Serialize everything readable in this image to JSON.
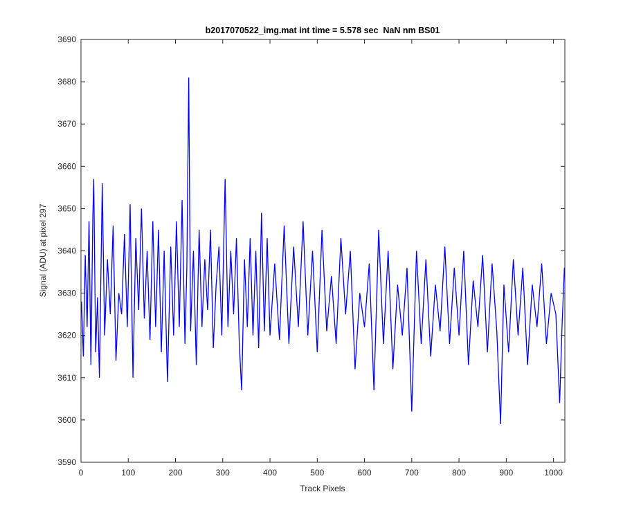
{
  "chart_data": {
    "type": "line",
    "title": "b2017070522_img.mat int time = 5.578 sec  NaN nm BS01",
    "x_label": "Track Pixels",
    "y_label": "Signal (ADU) at pixel 297",
    "xlim": [
      0,
      1024
    ],
    "xticks": [
      0,
      100,
      200,
      300,
      400,
      500,
      600,
      700,
      800,
      900,
      1000
    ],
    "ylim": [
      3590,
      3690
    ],
    "yticks": [
      3590,
      3600,
      3610,
      3620,
      3630,
      3640,
      3650,
      3660,
      3670,
      3680,
      3690
    ],
    "x": [
      1,
      5,
      9,
      13,
      17,
      21,
      25,
      27,
      31,
      35,
      39,
      45,
      50,
      56,
      62,
      68,
      74,
      80,
      86,
      92,
      98,
      104,
      110,
      116,
      122,
      128,
      134,
      140,
      146,
      152,
      158,
      164,
      170,
      176,
      183,
      190,
      196,
      202,
      208,
      214,
      220,
      224,
      228,
      232,
      238,
      244,
      250,
      256,
      262,
      268,
      274,
      280,
      286,
      292,
      298,
      305,
      311,
      317,
      323,
      329,
      335,
      340,
      346,
      352,
      358,
      364,
      370,
      376,
      382,
      388,
      394,
      400,
      410,
      420,
      430,
      440,
      450,
      460,
      470,
      480,
      490,
      500,
      510,
      520,
      530,
      540,
      550,
      560,
      570,
      580,
      590,
      600,
      610,
      620,
      630,
      640,
      650,
      660,
      670,
      680,
      690,
      700,
      710,
      720,
      730,
      740,
      750,
      760,
      770,
      780,
      790,
      800,
      810,
      820,
      830,
      840,
      850,
      860,
      870,
      880,
      888,
      895,
      905,
      915,
      925,
      935,
      945,
      955,
      965,
      975,
      985,
      995,
      1005,
      1013,
      1018,
      1023
    ],
    "series": [
      {
        "color": "#0000ff",
        "values": [
          3628,
          3615,
          3639,
          3622,
          3647,
          3613,
          3648,
          3657,
          3616,
          3629,
          3610,
          3656,
          3620,
          3638,
          3625,
          3646,
          3614,
          3630,
          3625,
          3644,
          3622,
          3651,
          3610,
          3643,
          3626,
          3650,
          3624,
          3640,
          3619,
          3647,
          3622,
          3645,
          3616,
          3640,
          3609,
          3641,
          3620,
          3647,
          3622,
          3652,
          3618,
          3636,
          3681,
          3621,
          3640,
          3613,
          3645,
          3622,
          3638,
          3626,
          3645,
          3617,
          3632,
          3641,
          3620,
          3657,
          3622,
          3640,
          3625,
          3643,
          3618,
          3607,
          3638,
          3622,
          3643,
          3620,
          3640,
          3617,
          3649,
          3621,
          3643,
          3620,
          3637,
          3619,
          3646,
          3618,
          3641,
          3622,
          3647,
          3620,
          3640,
          3616,
          3645,
          3621,
          3634,
          3618,
          3643,
          3625,
          3640,
          3612,
          3630,
          3622,
          3637,
          3607,
          3645,
          3618,
          3640,
          3612,
          3632,
          3620,
          3636,
          3602,
          3640,
          3618,
          3638,
          3615,
          3632,
          3621,
          3641,
          3618,
          3636,
          3620,
          3640,
          3613,
          3633,
          3622,
          3639,
          3616,
          3637,
          3621,
          3599,
          3632,
          3616,
          3638,
          3620,
          3636,
          3613,
          3632,
          3622,
          3637,
          3618,
          3630,
          3625,
          3604,
          3622,
          3636
        ]
      }
    ]
  }
}
